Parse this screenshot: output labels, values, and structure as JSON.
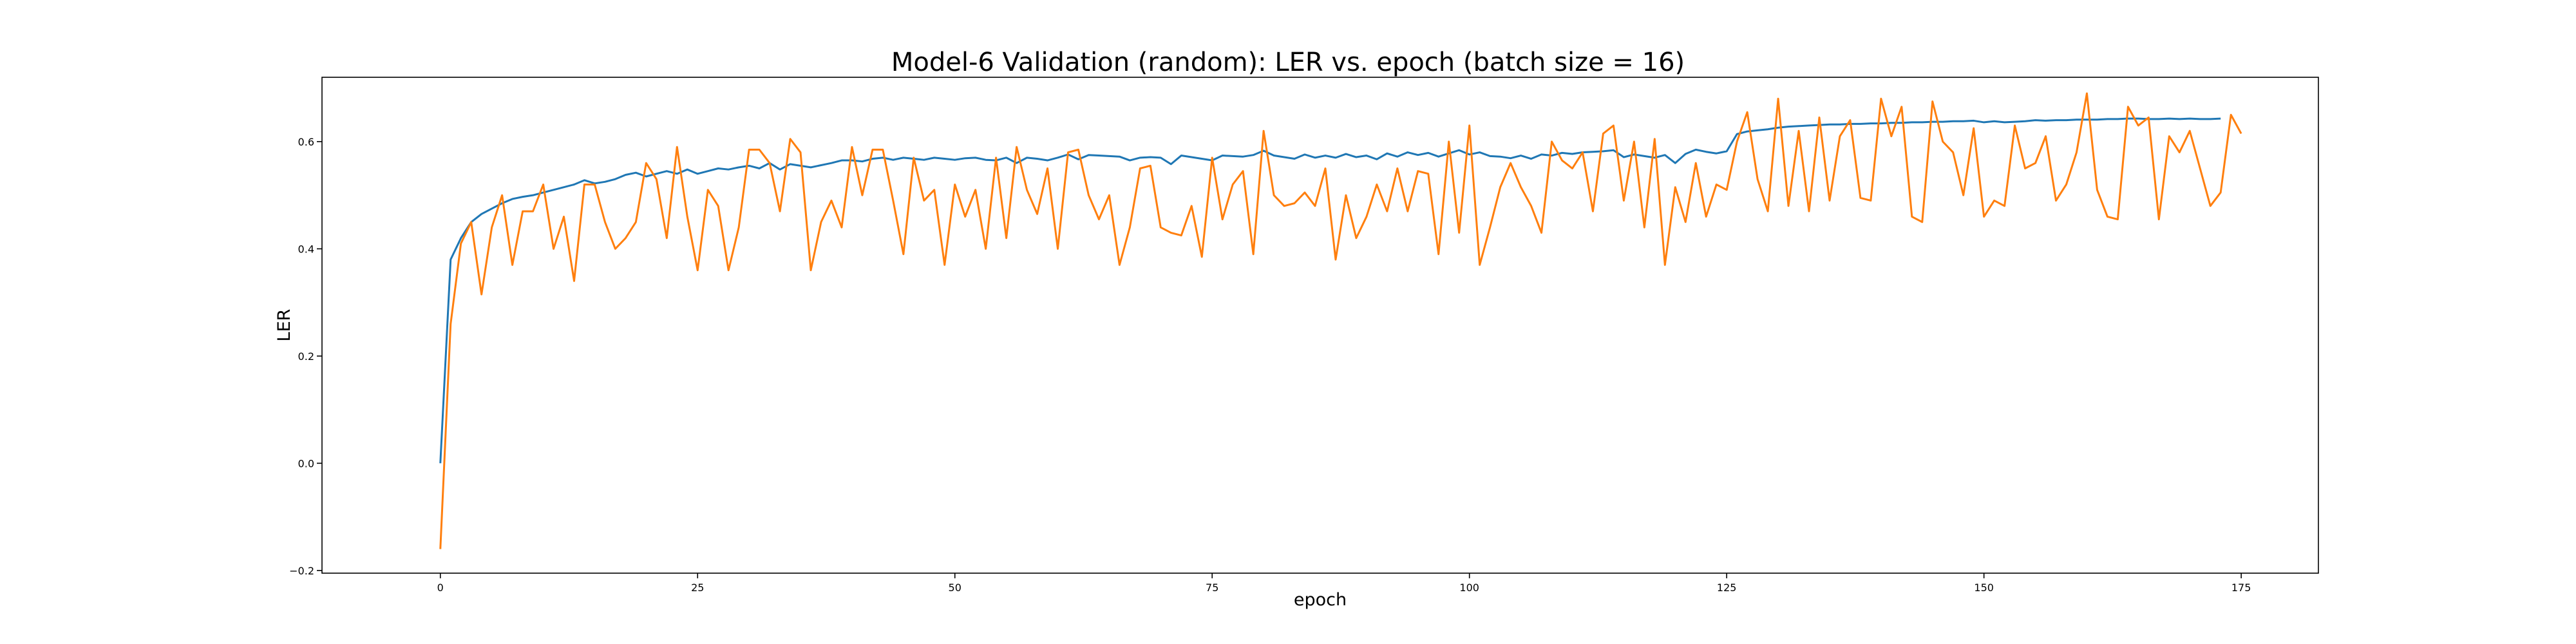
{
  "chart_data": {
    "type": "line",
    "title": "Model-6 Validation (random): LER vs. epoch (batch size = 16)",
    "xlabel": "epoch",
    "ylabel": "LER",
    "xlim": [
      -11.5,
      182.5
    ],
    "ylim": [
      -0.205,
      0.72
    ],
    "xticks": [
      0,
      25,
      50,
      75,
      100,
      125,
      150,
      175
    ],
    "yticks": [
      -0.2,
      0.0,
      0.2,
      0.4,
      0.6
    ],
    "xtick_labels": [
      "0",
      "25",
      "50",
      "75",
      "100",
      "125",
      "150",
      "175"
    ],
    "ytick_labels": [
      "−0.2",
      "0.0",
      "0.2",
      "0.4",
      "0.6"
    ],
    "grid": false,
    "legend": "none",
    "series": [
      {
        "color": "#1f77b4",
        "x_start": 0,
        "values": [
          0.0,
          0.38,
          0.42,
          0.45,
          0.465,
          0.475,
          0.485,
          0.493,
          0.497,
          0.5,
          0.505,
          0.51,
          0.515,
          0.52,
          0.528,
          0.522,
          0.525,
          0.53,
          0.538,
          0.542,
          0.535,
          0.54,
          0.545,
          0.54,
          0.548,
          0.54,
          0.545,
          0.55,
          0.548,
          0.552,
          0.555,
          0.55,
          0.56,
          0.548,
          0.558,
          0.555,
          0.552,
          0.556,
          0.56,
          0.565,
          0.565,
          0.563,
          0.568,
          0.57,
          0.566,
          0.57,
          0.568,
          0.566,
          0.57,
          0.568,
          0.566,
          0.569,
          0.57,
          0.566,
          0.565,
          0.57,
          0.56,
          0.57,
          0.568,
          0.565,
          0.57,
          0.576,
          0.567,
          0.575,
          0.574,
          0.573,
          0.572,
          0.565,
          0.57,
          0.571,
          0.57,
          0.558,
          0.574,
          0.571,
          0.568,
          0.565,
          0.574,
          0.573,
          0.572,
          0.575,
          0.583,
          0.574,
          0.571,
          0.568,
          0.576,
          0.57,
          0.574,
          0.57,
          0.577,
          0.571,
          0.574,
          0.567,
          0.578,
          0.572,
          0.58,
          0.575,
          0.579,
          0.572,
          0.578,
          0.584,
          0.576,
          0.58,
          0.573,
          0.572,
          0.569,
          0.574,
          0.568,
          0.576,
          0.574,
          0.579,
          0.577,
          0.58,
          0.581,
          0.582,
          0.584,
          0.571,
          0.576,
          0.573,
          0.57,
          0.575,
          0.56,
          0.577,
          0.585,
          0.581,
          0.578,
          0.582,
          0.614,
          0.619,
          0.621,
          0.623,
          0.626,
          0.628,
          0.629,
          0.63,
          0.631,
          0.632,
          0.632,
          0.633,
          0.633,
          0.634,
          0.634,
          0.635,
          0.635,
          0.636,
          0.636,
          0.637,
          0.637,
          0.638,
          0.638,
          0.639,
          0.636,
          0.638,
          0.636,
          0.637,
          0.638,
          0.64,
          0.639,
          0.64,
          0.64,
          0.641,
          0.641,
          0.641,
          0.642,
          0.642,
          0.643,
          0.643,
          0.642,
          0.642,
          0.643,
          0.642,
          0.643,
          0.642,
          0.642,
          0.643
        ]
      },
      {
        "color": "#ff7f0e",
        "x_start": 0,
        "values": [
          -0.16,
          0.26,
          0.41,
          0.45,
          0.315,
          0.44,
          0.5,
          0.37,
          0.47,
          0.47,
          0.52,
          0.4,
          0.46,
          0.34,
          0.52,
          0.52,
          0.45,
          0.4,
          0.42,
          0.45,
          0.56,
          0.53,
          0.42,
          0.59,
          0.46,
          0.36,
          0.51,
          0.48,
          0.36,
          0.44,
          0.585,
          0.585,
          0.56,
          0.47,
          0.605,
          0.58,
          0.36,
          0.45,
          0.49,
          0.44,
          0.59,
          0.5,
          0.585,
          0.585,
          0.49,
          0.39,
          0.57,
          0.49,
          0.51,
          0.37,
          0.52,
          0.46,
          0.51,
          0.4,
          0.57,
          0.42,
          0.59,
          0.51,
          0.465,
          0.55,
          0.4,
          0.58,
          0.585,
          0.5,
          0.455,
          0.5,
          0.37,
          0.44,
          0.55,
          0.555,
          0.44,
          0.43,
          0.425,
          0.48,
          0.385,
          0.57,
          0.455,
          0.52,
          0.545,
          0.39,
          0.62,
          0.5,
          0.48,
          0.485,
          0.505,
          0.48,
          0.55,
          0.38,
          0.5,
          0.42,
          0.46,
          0.52,
          0.47,
          0.55,
          0.47,
          0.545,
          0.54,
          0.39,
          0.6,
          0.43,
          0.63,
          0.37,
          0.44,
          0.515,
          0.56,
          0.515,
          0.48,
          0.43,
          0.6,
          0.565,
          0.55,
          0.58,
          0.47,
          0.615,
          0.63,
          0.49,
          0.6,
          0.44,
          0.605,
          0.37,
          0.515,
          0.45,
          0.56,
          0.46,
          0.52,
          0.51,
          0.6,
          0.655,
          0.53,
          0.47,
          0.68,
          0.48,
          0.62,
          0.47,
          0.645,
          0.49,
          0.61,
          0.64,
          0.495,
          0.49,
          0.68,
          0.61,
          0.665,
          0.46,
          0.45,
          0.675,
          0.6,
          0.58,
          0.5,
          0.625,
          0.46,
          0.49,
          0.48,
          0.63,
          0.55,
          0.56,
          0.61,
          0.49,
          0.52,
          0.58,
          0.69,
          0.51,
          0.46,
          0.455,
          0.665,
          0.63,
          0.645,
          0.455,
          0.61,
          0.58,
          0.62,
          0.55,
          0.48,
          0.505,
          0.65,
          0.615
        ]
      }
    ]
  }
}
